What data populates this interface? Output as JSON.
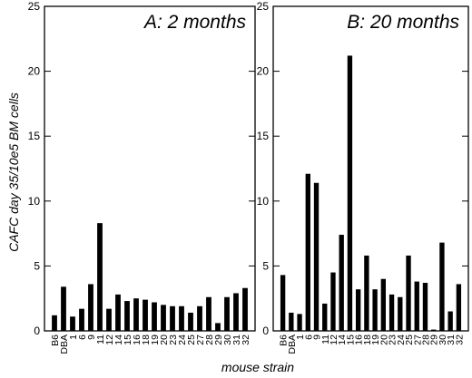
{
  "ylabel": "CAFC day 35/10e5 BM cells",
  "xlabel": "mouse strain",
  "chart_data": [
    {
      "type": "bar",
      "title": "A: 2 months",
      "categories": [
        "B6",
        "DBA",
        "1",
        "6",
        "9",
        "11",
        "12",
        "14",
        "15",
        "16",
        "18",
        "19",
        "20",
        "23",
        "24",
        "25",
        "27",
        "28",
        "29",
        "30",
        "31",
        "32"
      ],
      "values": [
        1.2,
        3.4,
        1.1,
        1.7,
        3.6,
        8.3,
        1.7,
        2.8,
        2.3,
        2.5,
        2.4,
        2.2,
        2.0,
        1.9,
        1.9,
        1.4,
        1.9,
        2.6,
        0.6,
        2.6,
        2.9,
        3.3
      ],
      "ylim": [
        0,
        25
      ],
      "yticks": [
        0,
        5,
        10,
        15,
        20,
        25
      ],
      "ylabel": "CAFC day 35/10e5 BM cells",
      "xlabel": "mouse strain"
    },
    {
      "type": "bar",
      "title": "B: 20 months",
      "categories": [
        "B6",
        "DBA",
        "1",
        "6",
        "9",
        "11",
        "12",
        "14",
        "15",
        "16",
        "18",
        "19",
        "20",
        "23",
        "24",
        "25",
        "27",
        "28",
        "29",
        "30",
        "31",
        "32"
      ],
      "values": [
        4.3,
        1.4,
        1.3,
        12.1,
        11.4,
        2.1,
        4.5,
        7.4,
        21.2,
        3.2,
        5.8,
        3.2,
        4.0,
        2.8,
        2.6,
        5.8,
        3.8,
        3.7,
        0.1,
        6.8,
        1.5,
        3.6
      ],
      "ylim": [
        0,
        25
      ],
      "yticks": [
        0,
        5,
        10,
        15,
        20,
        25
      ],
      "ylabel": "CAFC day 35/10e5 BM cells",
      "xlabel": "mouse strain"
    }
  ]
}
